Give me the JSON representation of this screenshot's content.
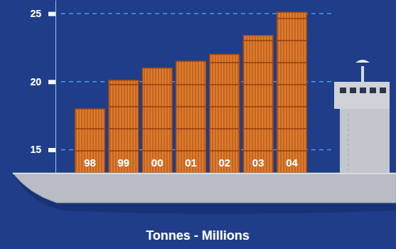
{
  "chart_data": {
    "type": "bar",
    "title": "Tonnes - Millions",
    "categories": [
      "98",
      "99",
      "00",
      "01",
      "02",
      "03",
      "04"
    ],
    "values": [
      18,
      20.1,
      21,
      21.5,
      22,
      23.4,
      25.1
    ],
    "color": "#e07b2c",
    "ylim": [
      13.3,
      26
    ],
    "yticks": [
      15,
      20,
      25
    ],
    "grid": true
  }
}
